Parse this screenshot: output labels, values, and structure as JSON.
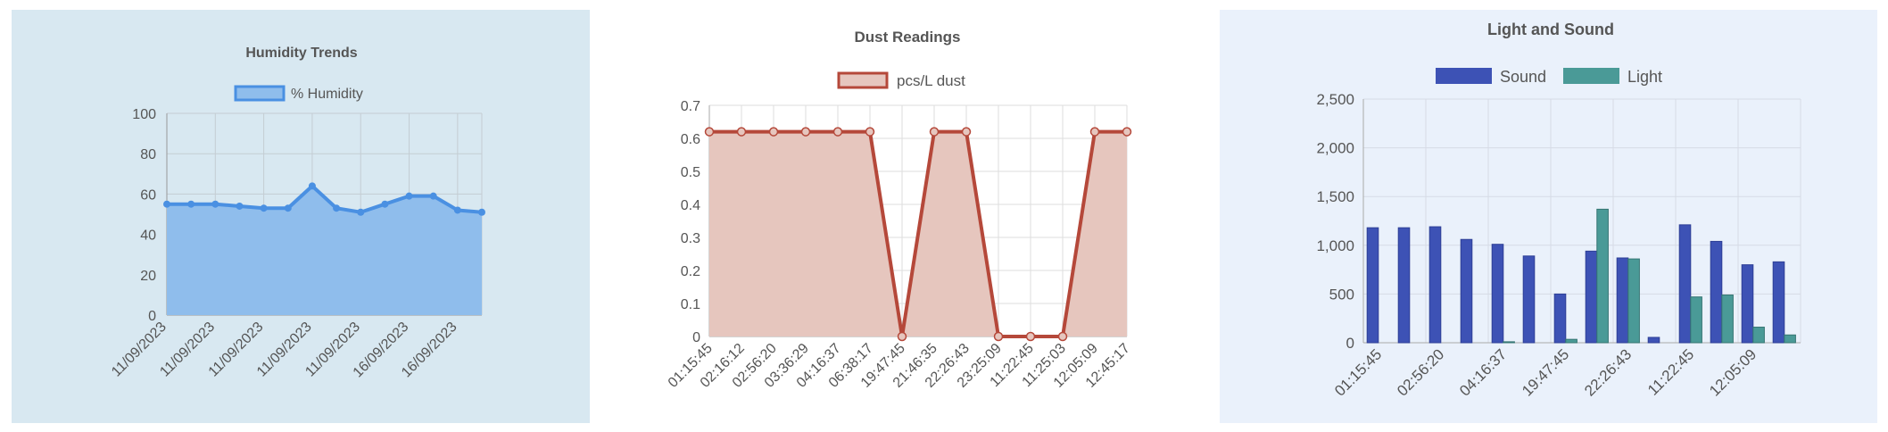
{
  "chart_data": [
    {
      "type": "area",
      "title": "Humidity Trends",
      "legend_position": "top",
      "grid": true,
      "ylim": [
        0,
        100
      ],
      "y_ticks": [
        0,
        20,
        40,
        60,
        80,
        100
      ],
      "tick_labels": [
        "11/09/2023",
        "11/09/2023",
        "11/09/2023",
        "11/09/2023",
        "11/09/2023",
        "16/09/2023",
        "16/09/2023"
      ],
      "series": [
        {
          "name": "% Humidity",
          "color": "#4a90e2",
          "fill": "#8fbdec",
          "values": [
            55,
            55,
            55,
            54,
            53,
            53,
            64,
            53,
            51,
            55,
            59,
            59,
            52,
            51
          ]
        }
      ]
    },
    {
      "type": "area",
      "title": "Dust Readings",
      "legend_position": "top",
      "grid": true,
      "ylim": [
        0,
        0.7
      ],
      "y_ticks": [
        0,
        0.1,
        0.2,
        0.3,
        0.4,
        0.5,
        0.6,
        0.7
      ],
      "categories": [
        "01:15:45",
        "02:16:12",
        "02:56:20",
        "03:36:29",
        "04:16:37",
        "06:38:17",
        "19:47:45",
        "21:46:35",
        "22:26:43",
        "23:25:09",
        "11:22:45",
        "11:25:03",
        "12:05:09",
        "12:45:17"
      ],
      "series": [
        {
          "name": "pcs/L dust",
          "color": "#b5483a",
          "fill": "#e6c6be",
          "values": [
            0.62,
            0.62,
            0.62,
            0.62,
            0.62,
            0.62,
            0,
            0.62,
            0.62,
            0,
            0,
            0,
            0.62,
            0.62
          ]
        }
      ]
    },
    {
      "type": "bar",
      "title": "Light and Sound",
      "legend_position": "top",
      "grid": true,
      "ylim": [
        0,
        2500
      ],
      "y_ticks": [
        0,
        500,
        1000,
        1500,
        2000,
        2500
      ],
      "y_tick_labels": [
        "0",
        "500",
        "1,000",
        "1,500",
        "2,000",
        "2,500"
      ],
      "tick_labels": [
        "01:15:45",
        "02:56:20",
        "04:16:37",
        "19:47:45",
        "22:26:43",
        "11:22:45",
        "12:05:09"
      ],
      "series": [
        {
          "name": "Sound",
          "color": "#3d52b5",
          "values": [
            1180,
            1180,
            1190,
            1060,
            1010,
            890,
            500,
            940,
            870,
            55,
            1210,
            1040,
            800,
            830
          ]
        },
        {
          "name": "Light",
          "color": "#4a9a97",
          "values": [
            0,
            0,
            0,
            0,
            10,
            0,
            35,
            1370,
            860,
            0,
            470,
            490,
            160,
            80
          ]
        }
      ]
    }
  ]
}
